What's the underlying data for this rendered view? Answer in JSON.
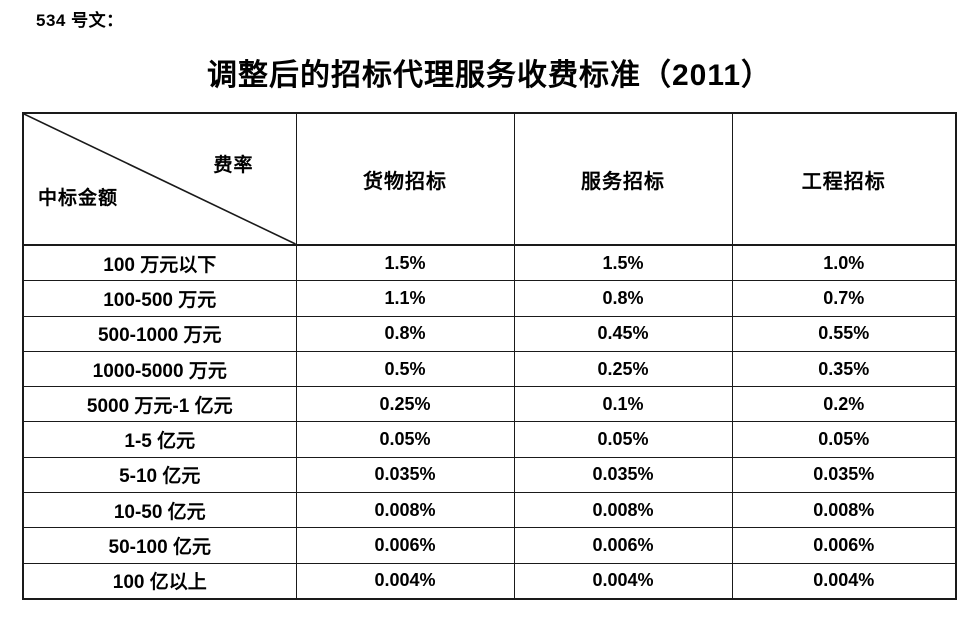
{
  "document": {
    "doc_number": "534 号文：",
    "title": "调整后的招标代理服务收费标准（2011）"
  },
  "table": {
    "corner": {
      "top_right_label": "费率",
      "bottom_left_label": "中标金额"
    },
    "columns": [
      "货物招标",
      "服务招标",
      "工程招标"
    ],
    "rows": [
      {
        "label": "100 万元以下",
        "values": [
          "1.5%",
          "1.5%",
          "1.0%"
        ]
      },
      {
        "label": "100-500 万元",
        "values": [
          "1.1%",
          "0.8%",
          "0.7%"
        ]
      },
      {
        "label": "500-1000 万元",
        "values": [
          "0.8%",
          "0.45%",
          "0.55%"
        ]
      },
      {
        "label": "1000-5000 万元",
        "values": [
          "0.5%",
          "0.25%",
          "0.35%"
        ]
      },
      {
        "label": "5000 万元-1 亿元",
        "values": [
          "0.25%",
          "0.1%",
          "0.2%"
        ]
      },
      {
        "label": "1-5 亿元",
        "values": [
          "0.05%",
          "0.05%",
          "0.05%"
        ]
      },
      {
        "label": "5-10 亿元",
        "values": [
          "0.035%",
          "0.035%",
          "0.035%"
        ]
      },
      {
        "label": "10-50 亿元",
        "values": [
          "0.008%",
          "0.008%",
          "0.008%"
        ]
      },
      {
        "label": "50-100 亿元",
        "values": [
          "0.006%",
          "0.006%",
          "0.006%"
        ]
      },
      {
        "label": "100 亿以上",
        "values": [
          "0.004%",
          "0.004%",
          "0.004%"
        ]
      }
    ]
  },
  "colors": {
    "text": "#000000",
    "border": "#1a1a1a",
    "background": "#ffffff"
  }
}
